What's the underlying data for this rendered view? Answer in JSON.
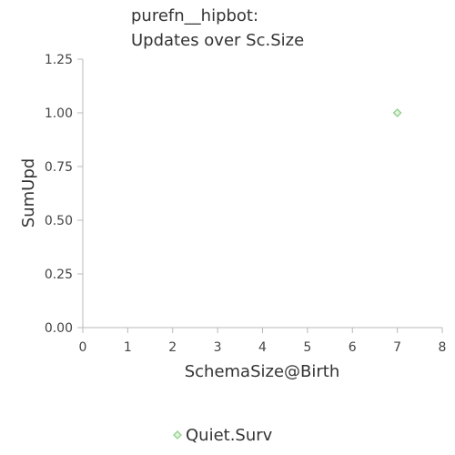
{
  "chart_data": {
    "type": "scatter",
    "title": [
      "purefn__hipbot:",
      "Updates over Sc.Size"
    ],
    "xlabel": "SchemaSize@Birth",
    "ylabel": "SumUpd",
    "xlim": [
      0,
      8
    ],
    "ylim": [
      0,
      1.25
    ],
    "x_ticks": [
      "0",
      "1",
      "2",
      "3",
      "4",
      "5",
      "6",
      "7",
      "8"
    ],
    "y_ticks": [
      "0.00",
      "0.25",
      "0.50",
      "0.75",
      "1.00",
      "1.25"
    ],
    "grid": false,
    "legend_position": "bottom-center",
    "series": [
      {
        "name": "Quiet.Surv",
        "marker": "diamond",
        "color": "#8fd18a",
        "points": [
          {
            "x": 7,
            "y": 1.0
          }
        ]
      }
    ]
  }
}
